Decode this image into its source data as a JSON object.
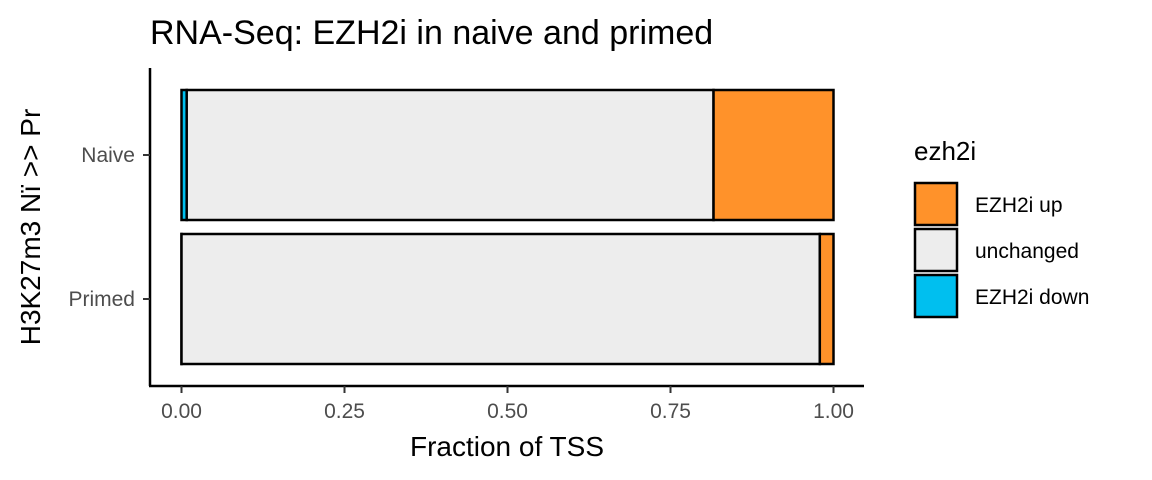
{
  "chart_data": {
    "type": "bar",
    "orientation": "horizontal",
    "stacked": true,
    "title": "RNA-Seq: EZH2i in naive and primed",
    "xlabel": "Fraction of TSS",
    "ylabel": "H3K27m3 Nï >> Pr",
    "categories": [
      "Naive",
      "Primed"
    ],
    "xlim": [
      0,
      1
    ],
    "xticks": [
      "0.00",
      "0.25",
      "0.50",
      "0.75",
      "1.00"
    ],
    "grid": false,
    "legend": {
      "title": "ezh2i",
      "placement": "right",
      "entries": [
        "EZH2i up",
        "unchanged",
        "EZH2i down"
      ]
    },
    "series": [
      {
        "name": "EZH2i down",
        "color": "#00BFEF",
        "values": [
          0.008,
          0.0
        ]
      },
      {
        "name": "unchanged",
        "color": "#EDEDED",
        "values": [
          0.808,
          0.979
        ]
      },
      {
        "name": "EZH2i up",
        "color": "#FF922A",
        "values": [
          0.184,
          0.021
        ]
      }
    ]
  }
}
